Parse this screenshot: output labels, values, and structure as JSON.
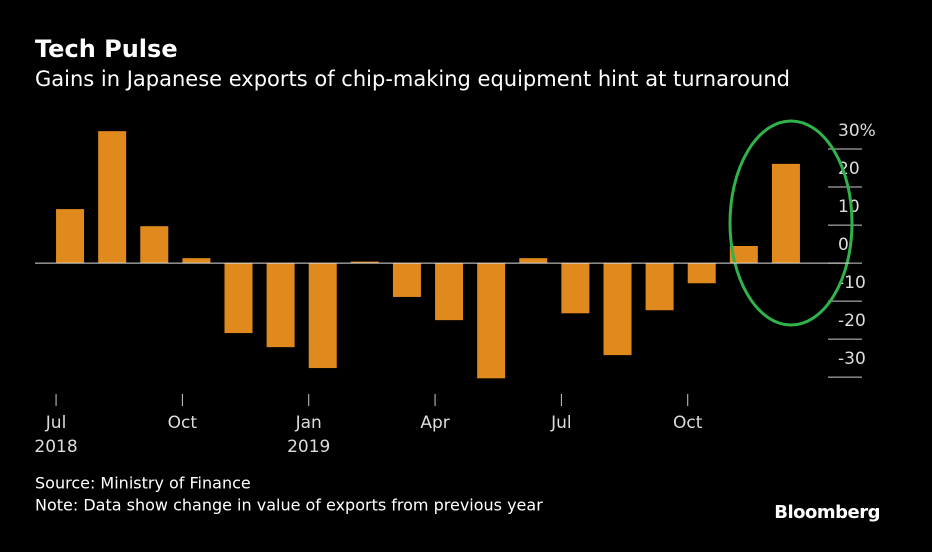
{
  "chart_data": {
    "type": "bar",
    "title": "Tech Pulse",
    "subtitle": "Gains in Japanese exports of chip-making equipment hint at turnaround",
    "categories": [
      "Jul",
      null,
      null,
      "Oct",
      null,
      null,
      "Jan",
      null,
      null,
      "Apr",
      null,
      null,
      "Jul",
      null,
      null,
      "Oct",
      null,
      null
    ],
    "year_labels": [
      "2018",
      null,
      null,
      null,
      null,
      null,
      "2019",
      null,
      null,
      null,
      null,
      null,
      null,
      null,
      null,
      null,
      null,
      null
    ],
    "values": [
      14.2,
      34.7,
      9.7,
      1.3,
      -18.4,
      -22.1,
      -27.6,
      0.4,
      -8.9,
      -15,
      -30.3,
      1.3,
      -13.2,
      -24.2,
      -12.4,
      -5.3,
      4.5,
      26.1
    ],
    "color": "#e08a1e",
    "ylim": [
      -36,
      35
    ],
    "yticks": [
      {
        "value": 30,
        "label": "30%"
      },
      20,
      10,
      0,
      -10,
      -20,
      -30
    ],
    "source": "Source: Ministry of Finance",
    "note": "Note: Data show change in value of exports from previous year",
    "brand": "Bloomberg"
  }
}
